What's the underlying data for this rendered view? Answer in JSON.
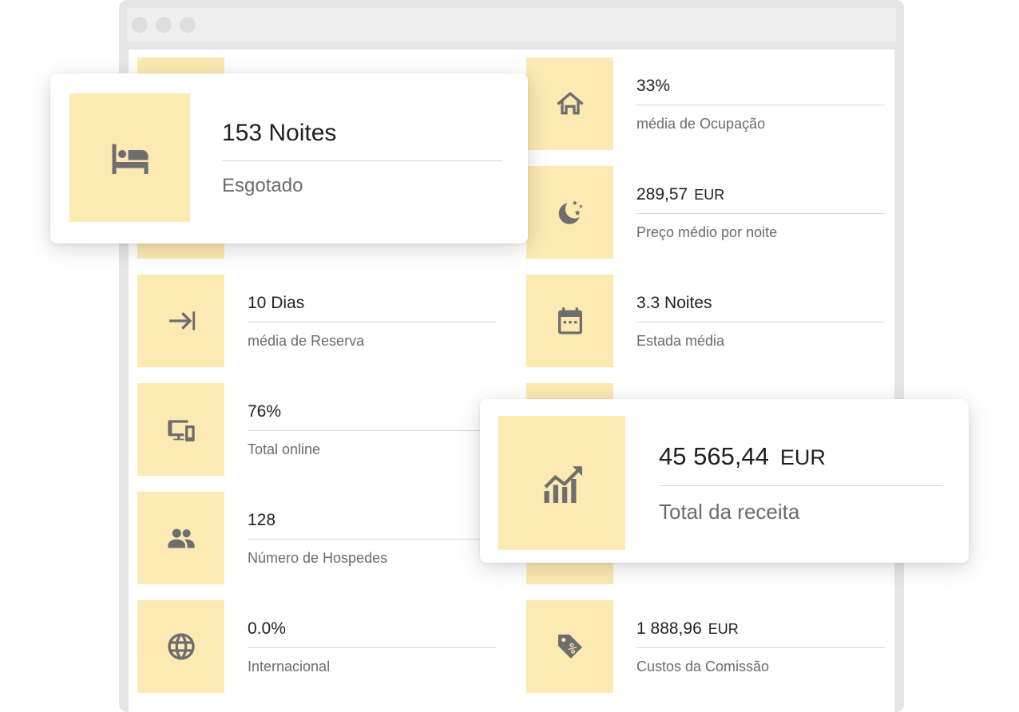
{
  "stats_left": [
    {
      "value": "10 Dias",
      "label": "média de Reserva",
      "icon": "arrow-to-end-icon"
    },
    {
      "value": "76%",
      "label": "Total online",
      "icon": "devices-icon"
    },
    {
      "value": "128",
      "label": "Número de Hospedes",
      "icon": "people-icon"
    },
    {
      "value": "0.0%",
      "label": "Internacional",
      "icon": "globe-icon"
    }
  ],
  "stats_right": [
    {
      "value": "33%",
      "label": "média de Ocupação",
      "icon": "house-icon"
    },
    {
      "value": "289,57",
      "unit": "EUR",
      "label": "Preço médio por noite",
      "icon": "moon-stars-icon"
    },
    {
      "value": "3.3 Noites",
      "label": "Estada média",
      "icon": "calendar-icon"
    },
    {
      "value": "1 888,96",
      "unit": "EUR",
      "label": "Custos da Comissão",
      "icon": "price-tag-icon"
    }
  ],
  "highlight_nights": {
    "value": "153 Noites",
    "label": "Esgotado",
    "icon": "bed-icon"
  },
  "highlight_revenue": {
    "value": "45 565,44",
    "unit": "EUR",
    "label": "Total da receita",
    "icon": "chart-growth-icon"
  },
  "colors": {
    "tile": "#fde9b2",
    "icon": "#6e6e6e",
    "frame": "#e6e6e6"
  }
}
